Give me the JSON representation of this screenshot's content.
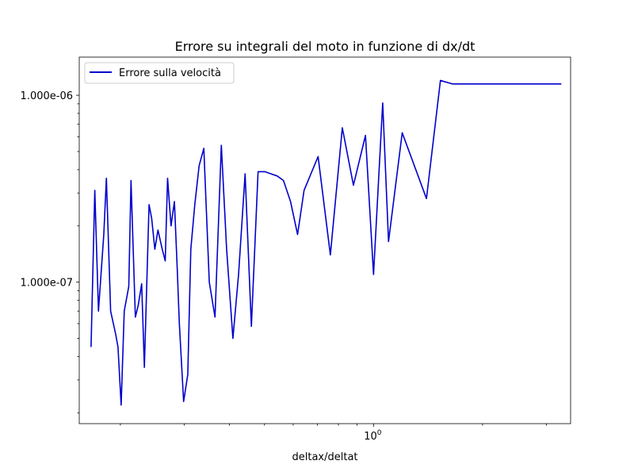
{
  "chart_data": {
    "type": "line",
    "title": "Errore su integrali del moto in funzione di dx/dt",
    "xlabel": "deltax/deltat",
    "ylabel": "",
    "xscale": "log",
    "yscale": "log",
    "xlim": [
      0.154,
      3.5
    ],
    "ylim": [
      1.75e-08,
      1.6e-06
    ],
    "grid": false,
    "legend_position": "top-left",
    "x_tick_labels": [
      {
        "value": 1,
        "label": "10^0"
      }
    ],
    "y_tick_labels": [
      {
        "value": 1e-07,
        "label": "1.000e-07"
      },
      {
        "value": 1e-06,
        "label": "1.000e-06"
      }
    ],
    "series": [
      {
        "name": "Errore sulla velocità",
        "color": "#0000cc",
        "x": [
          0.166,
          0.17,
          0.174,
          0.18,
          0.183,
          0.188,
          0.194,
          0.197,
          0.201,
          0.205,
          0.211,
          0.214,
          0.22,
          0.224,
          0.229,
          0.233,
          0.24,
          0.244,
          0.249,
          0.254,
          0.261,
          0.266,
          0.27,
          0.276,
          0.282,
          0.287,
          0.291,
          0.299,
          0.307,
          0.313,
          0.321,
          0.33,
          0.34,
          0.352,
          0.365,
          0.38,
          0.393,
          0.409,
          0.424,
          0.442,
          0.46,
          0.48,
          0.501,
          0.521,
          0.542,
          0.564,
          0.59,
          0.617,
          0.643,
          0.703,
          0.76,
          0.82,
          0.88,
          0.95,
          1.0,
          1.06,
          1.1,
          1.2,
          1.4,
          1.53,
          1.65,
          1.84,
          2.0,
          2.35,
          2.8,
          3.3
        ],
        "y": [
          4.5e-08,
          3.1e-07,
          7e-08,
          1.8e-07,
          3.6e-07,
          7e-08,
          5.3e-08,
          4.5e-08,
          2.2e-08,
          7e-08,
          9.5e-08,
          3.5e-07,
          6.5e-08,
          7.5e-08,
          9.8e-08,
          3.5e-08,
          2.6e-07,
          2.2e-07,
          1.5e-07,
          1.9e-07,
          1.5e-07,
          1.3e-07,
          3.6e-07,
          2e-07,
          2.7e-07,
          1.2e-07,
          6e-08,
          2.3e-08,
          3.2e-08,
          1.5e-07,
          2.6e-07,
          4.2e-07,
          5.2e-07,
          1e-07,
          6.5e-08,
          5.4e-07,
          1.5e-07,
          5e-08,
          1.1e-07,
          3.8e-07,
          5.8e-08,
          3.9e-07,
          3.9e-07,
          3.8e-07,
          3.7e-07,
          3.5e-07,
          2.7e-07,
          1.8e-07,
          3.1e-07,
          4.7e-07,
          1.4e-07,
          6.7e-07,
          3.3e-07,
          6.1e-07,
          1.1e-07,
          9.1e-07,
          1.65e-07,
          6.3e-07,
          2.8e-07,
          1.2e-06,
          1.15e-06,
          1.15e-06,
          1.15e-06,
          1.15e-06,
          1.15e-06,
          1.15e-06
        ]
      }
    ]
  }
}
